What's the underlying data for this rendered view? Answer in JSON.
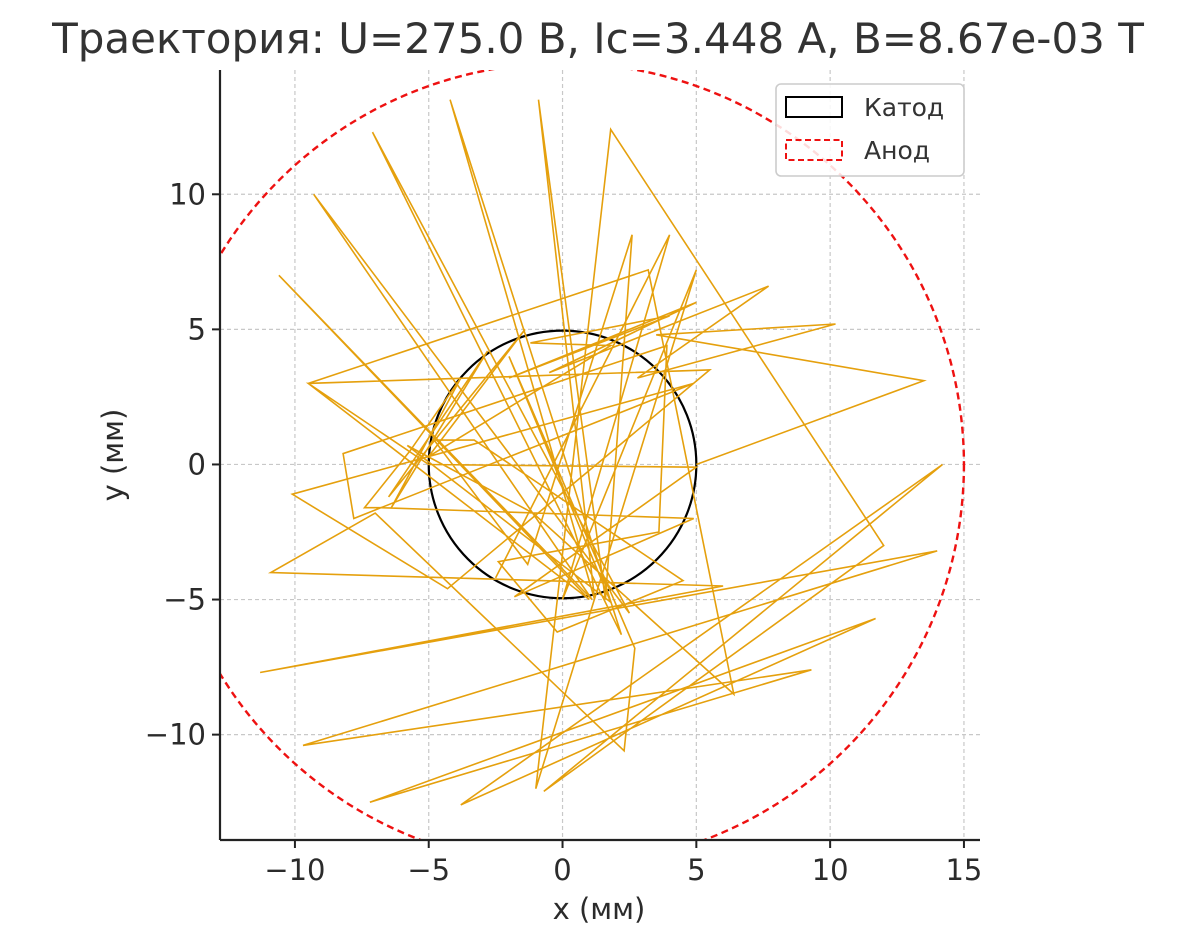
{
  "chart_data": {
    "type": "line",
    "title": "Траектория: U=275.0 В, Ic=3.448 A, B=8.67e-03 Т",
    "xlabel": "x (мм)",
    "ylabel": "y (мм)",
    "xlim": [
      -12.8,
      15.6
    ],
    "ylim": [
      -13.9,
      14.6
    ],
    "xticks": [
      {
        "value": -10,
        "label": "−10"
      },
      {
        "value": -5,
        "label": "−5"
      },
      {
        "value": 0,
        "label": "0"
      },
      {
        "value": 5,
        "label": "5"
      },
      {
        "value": 10,
        "label": "10"
      },
      {
        "value": 15,
        "label": "15"
      }
    ],
    "yticks": [
      {
        "value": 10,
        "label": "10"
      },
      {
        "value": 5,
        "label": "5"
      },
      {
        "value": 0,
        "label": "0"
      },
      {
        "value": -5,
        "label": "−5"
      },
      {
        "value": -10,
        "label": "−10"
      }
    ],
    "grid": true,
    "legend_position": "top-right",
    "cathode": {
      "name": "Катод",
      "radius": 5,
      "color": "#000000",
      "style": "solid"
    },
    "anode": {
      "name": "Анод",
      "radius": 15,
      "color": "#ee1111",
      "style": "dashed"
    },
    "trajectory": {
      "color": "#e5a00d",
      "points": [
        [
          5.0,
          0.0
        ],
        [
          13.5,
          3.1
        ],
        [
          3.5,
          4.8
        ],
        [
          10.2,
          5.2
        ],
        [
          2.8,
          3.2
        ],
        [
          7.7,
          6.6
        ],
        [
          -0.5,
          3.4
        ],
        [
          5.0,
          6.0
        ],
        [
          -2.0,
          3.2
        ],
        [
          4.0,
          5.5
        ],
        [
          -1.2,
          4.5
        ],
        [
          1.8,
          4.4
        ],
        [
          -5.0,
          0.3
        ],
        [
          -1.4,
          5.0
        ],
        [
          -6.5,
          -1.2
        ],
        [
          -2.8,
          4.2
        ],
        [
          -6.4,
          -1.6
        ],
        [
          -3.8,
          3.2
        ],
        [
          -5.7,
          0.5
        ],
        [
          -7.4,
          -1.6
        ],
        [
          -6.8,
          -1.6
        ],
        [
          4.9,
          -2.0
        ],
        [
          -1.8,
          -4.9
        ],
        [
          5.0,
          -0.1
        ],
        [
          -5.0,
          0.0
        ],
        [
          -9.5,
          3.0
        ],
        [
          5.5,
          3.5
        ],
        [
          -4.3,
          -4.6
        ],
        [
          -10.1,
          -1.1
        ],
        [
          4.9,
          3.0
        ],
        [
          -7.8,
          -2.0
        ],
        [
          -8.2,
          0.4
        ],
        [
          3.9,
          4.4
        ],
        [
          3.6,
          -2.5
        ],
        [
          -2.4,
          -3.6
        ],
        [
          -0.2,
          -6.2
        ],
        [
          4.5,
          -4.3
        ],
        [
          -3.3,
          0.9
        ],
        [
          -4.8,
          0.9
        ],
        [
          -1.3,
          -3.7
        ],
        [
          2.6,
          8.5
        ],
        [
          1.6,
          -5.0
        ],
        [
          -0.9,
          13.5
        ],
        [
          1.2,
          -5.0
        ],
        [
          -4.2,
          13.5
        ],
        [
          2.2,
          -6.3
        ],
        [
          -7.1,
          12.3
        ],
        [
          2.5,
          -5.5
        ],
        [
          -9.3,
          10.0
        ],
        [
          1.1,
          -5.0
        ],
        [
          -10.6,
          7.0
        ],
        [
          1.0,
          -5.0
        ],
        [
          -9.5,
          3.0
        ],
        [
          3.2,
          7.2
        ],
        [
          6.4,
          -8.5
        ],
        [
          -1.1,
          -1.8
        ],
        [
          -5.8,
          0.7
        ],
        [
          1.8,
          -5.1
        ],
        [
          -2.0,
          4.0
        ],
        [
          2.7,
          -6.8
        ],
        [
          2.3,
          -10.6
        ],
        [
          -7.0,
          -1.8
        ],
        [
          -10.9,
          -4.0
        ],
        [
          6.0,
          -4.5
        ],
        [
          -11.3,
          -7.7
        ],
        [
          14.0,
          -3.2
        ],
        [
          -9.7,
          -10.4
        ],
        [
          9.3,
          -7.6
        ],
        [
          -7.2,
          -12.5
        ],
        [
          11.7,
          -5.7
        ],
        [
          -3.8,
          -12.6
        ],
        [
          14.2,
          0.0
        ],
        [
          -0.7,
          -12.1
        ],
        [
          12.0,
          -3.0
        ],
        [
          1.8,
          12.4
        ],
        [
          -1.0,
          -12.0
        ],
        [
          5.0,
          7.2
        ],
        [
          0.0,
          -5.0
        ],
        [
          4.0,
          8.5
        ],
        [
          -2.5,
          -4.2
        ]
      ]
    }
  }
}
